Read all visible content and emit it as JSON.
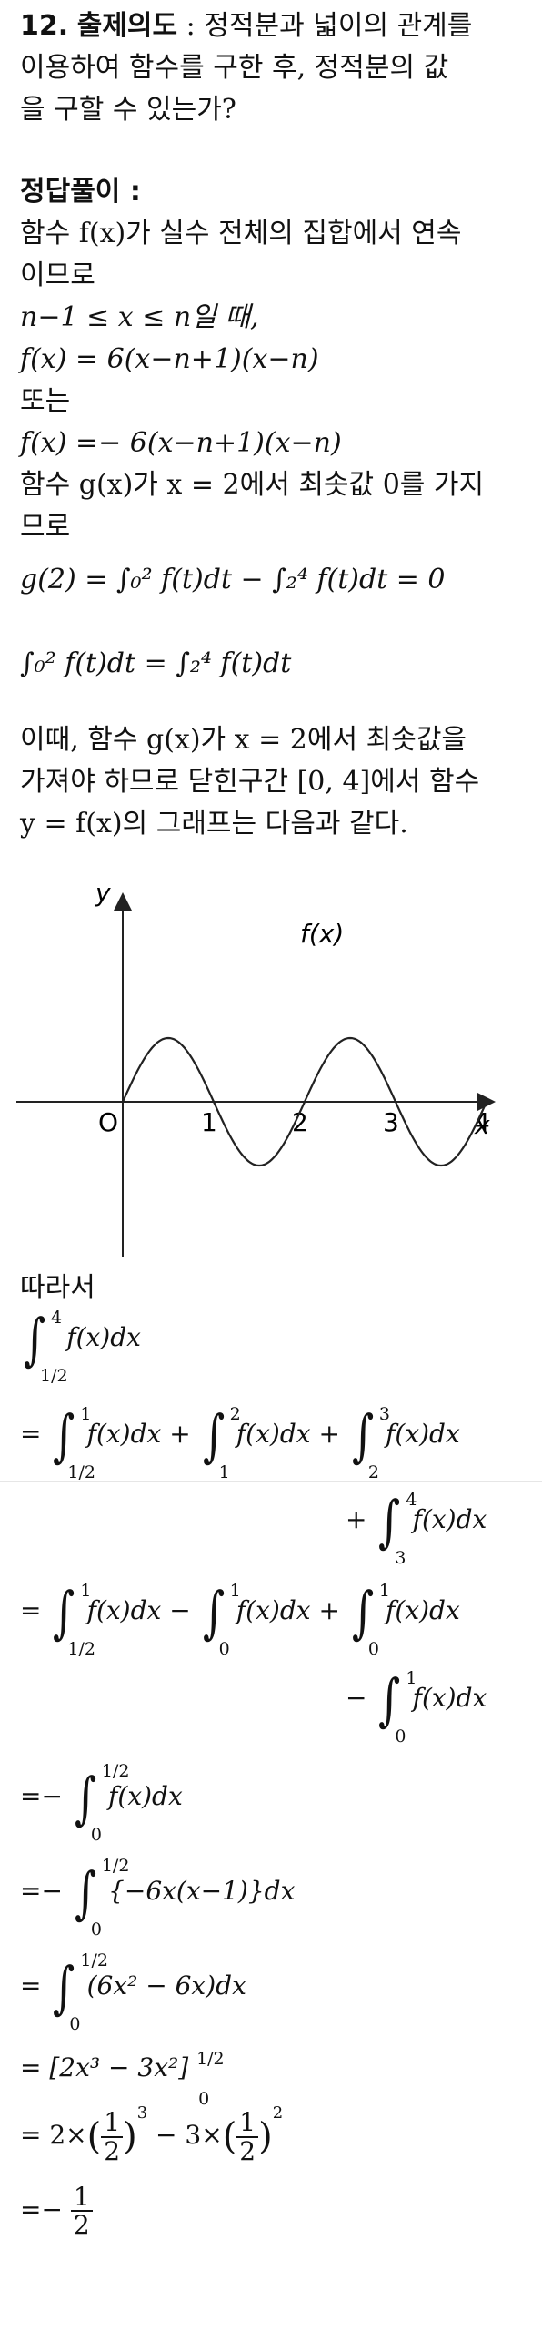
{
  "problem": {
    "number": "12.",
    "intent_title": "출제의도",
    "intent_sep": ":",
    "intent_line1": "정적분과 넓이의 관계를",
    "intent_line2": "이용하여 함수를 구한 후, 정적분의 값",
    "intent_line3": "을 구할 수 있는가?"
  },
  "solution": {
    "title": "정답풀이 :",
    "p1_line1": "함수 f(x)가 실수 전체의 집합에서 연속",
    "p1_line2": "이므로",
    "cond": "n−1 ≤ x ≤ n일 때,",
    "eq1": "f(x) = 6(x−n+1)(x−n)",
    "or": "또는",
    "eq2": "f(x) =− 6(x−n+1)(x−n)",
    "p2_line1": "함수 g(x)가 x = 2에서 최솟값 0를 가지",
    "p2_line2": "므로",
    "eq3": "g(2) = ∫₀² f(t)dt − ∫₂⁴ f(t)dt = 0",
    "eq4": "∫₀² f(t)dt = ∫₂⁴ f(t)dt",
    "p3_line1": "이때, 함수 g(x)가 x = 2에서 최솟값을",
    "p3_line2": "가져야 하므로 닫힌구간 [0, 4]에서 함수",
    "p3_line3": "y = f(x)의 그래프는 다음과 같다.",
    "therefore": "따라서"
  },
  "graph": {
    "y_axis_label": "y",
    "x_axis_label": "x",
    "origin_label": "O",
    "curve_label": "f(x)",
    "tick_labels": [
      "1",
      "2",
      "3",
      "4"
    ]
  },
  "chart_data": {
    "type": "line",
    "series": [
      {
        "name": "f(x)",
        "x": [
          0,
          0.5,
          1,
          1.5,
          2,
          2.5,
          3,
          3.5,
          4
        ],
        "y": [
          0,
          1.5,
          0,
          -1.5,
          0,
          1.5,
          0,
          -1.5,
          0
        ]
      }
    ],
    "xlabel": "x",
    "ylabel": "y",
    "xlim": [
      0,
      4
    ],
    "grid": false
  },
  "calc": {
    "integrand_f": "f(x)dx",
    "l1_lo": "1/2",
    "l1_hi": "4",
    "l2_a_lo": "1/2",
    "l2_a_hi": "1",
    "l2_b_lo": "1",
    "l2_b_hi": "2",
    "l2_c_lo": "2",
    "l2_c_hi": "3",
    "l2_d_lo": "3",
    "l2_d_hi": "4",
    "l3_a_lo": "1/2",
    "l3_a_hi": "1",
    "l3_b_lo": "0",
    "l3_b_hi": "1",
    "l3_c_lo": "0",
    "l3_c_hi": "1",
    "l3_d_lo": "0",
    "l3_d_hi": "1",
    "l4_lo": "0",
    "l4_hi": "1/2",
    "integrand_5": "{−6x(x−1)}dx",
    "integrand_6": "(6x² − 6x)dx",
    "antideriv": "[2x³ − 3x²]",
    "eval_prefix": "= 2×",
    "eval_mid": "− 3×",
    "result": "1/2",
    "eq": "=",
    "neg_eq": "=−",
    "plus": "+",
    "minus": "−",
    "frac_num": "1",
    "frac_den": "2",
    "exp3": "3",
    "exp2": "2"
  }
}
